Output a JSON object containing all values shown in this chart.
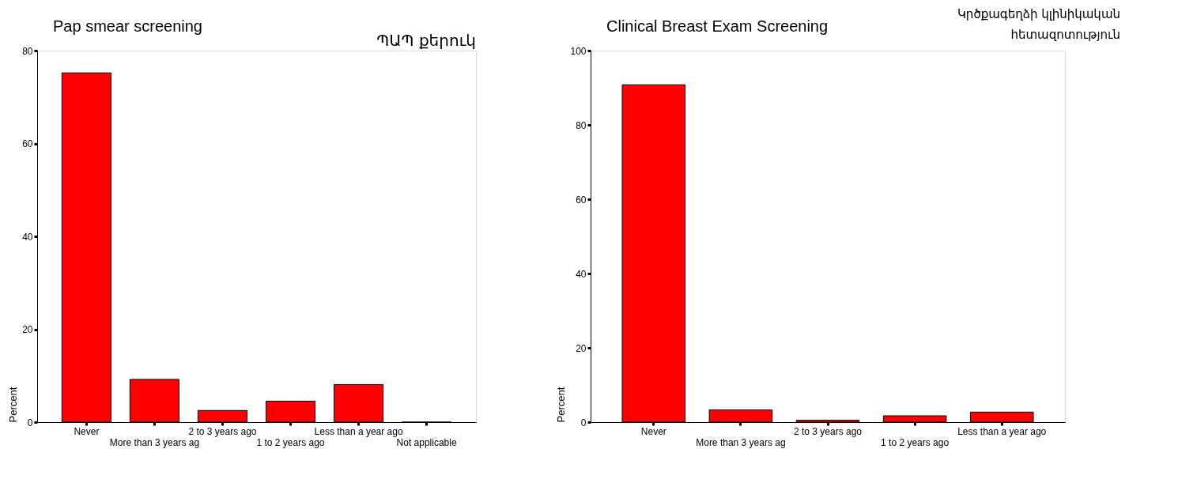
{
  "chart_data": [
    {
      "type": "bar",
      "title": "Pap smear screening",
      "ylabel": "Percent",
      "categories": [
        "Never",
        "More than 3 years ag",
        "2 to 3 years ago",
        "1 to 2 years ago",
        "Less than a year ago",
        "Not applicable"
      ],
      "values": [
        75.2,
        9.2,
        2.5,
        4.5,
        8.1,
        0
      ],
      "color": "#ff0000",
      "ylim": [
        0,
        80
      ],
      "yticks": [
        0,
        20,
        40,
        60,
        80
      ],
      "grid": false,
      "annotations": [
        "ՊԱՊ քերուկ"
      ]
    },
    {
      "type": "bar",
      "title": "Clinical Breast Exam Screening",
      "ylabel": "Percent",
      "categories": [
        "Never",
        "More than 3 years ag",
        "2 to 3 years ago",
        "1 to 2 years ago",
        "Less than a year ago"
      ],
      "values": [
        90.8,
        3.3,
        0.5,
        1.7,
        2.7
      ],
      "color": "#ff0000",
      "ylim": [
        0,
        100
      ],
      "yticks": [
        0,
        20,
        40,
        60,
        80,
        100
      ],
      "grid": false,
      "annotations": [
        "Կրծքագեղձի կլինիկական հետազոտություն"
      ]
    }
  ]
}
